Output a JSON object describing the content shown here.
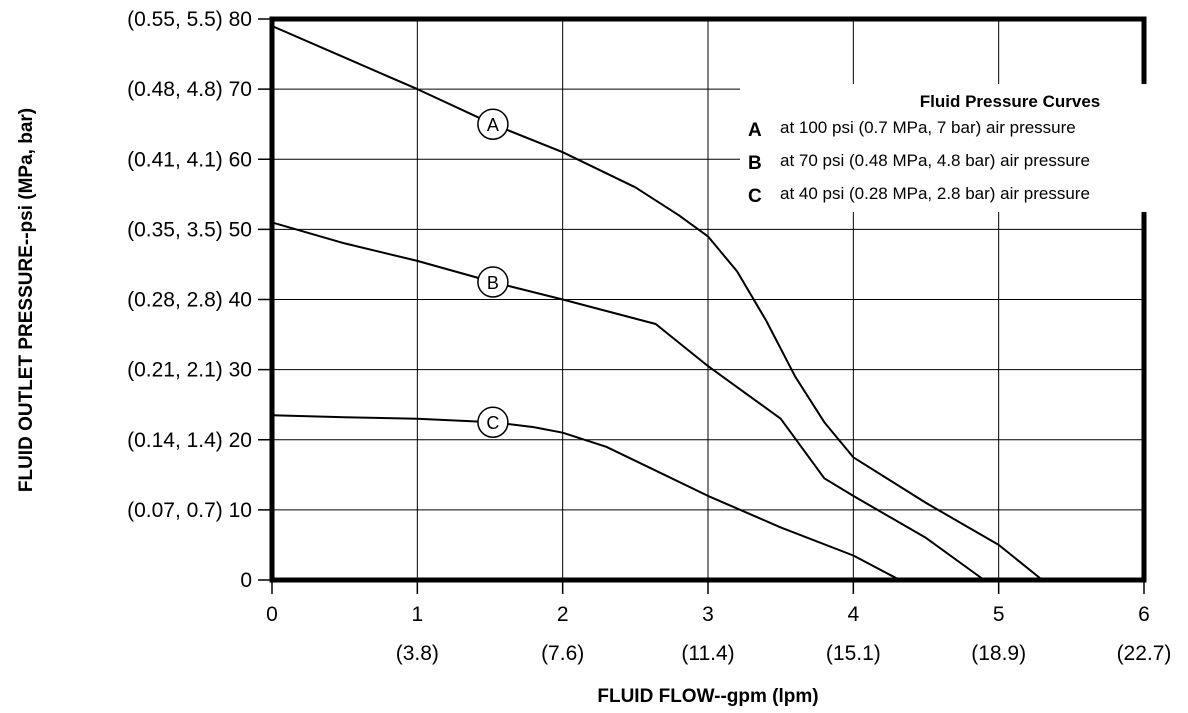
{
  "chart_data": {
    "type": "line",
    "title": "",
    "xlabel": "FLUID FLOW--gpm (lpm)",
    "ylabel": "FLUID OUTLET PRESSURE--psi (MPa, bar)",
    "xlim": [
      0,
      6
    ],
    "ylim": [
      0,
      80
    ],
    "grid": true,
    "x_ticks": [
      {
        "value": 0,
        "label": "0",
        "sublabel": ""
      },
      {
        "value": 1,
        "label": "1",
        "sublabel": "(3.8)"
      },
      {
        "value": 2,
        "label": "2",
        "sublabel": "(7.6)"
      },
      {
        "value": 3,
        "label": "3",
        "sublabel": "(11.4)"
      },
      {
        "value": 4,
        "label": "4",
        "sublabel": "(15.1)"
      },
      {
        "value": 5,
        "label": "5",
        "sublabel": "(18.9)"
      },
      {
        "value": 6,
        "label": "6",
        "sublabel": "(22.7)"
      }
    ],
    "y_ticks": [
      {
        "value": 0,
        "label": "0"
      },
      {
        "value": 10,
        "label": "(0.07, 0.7) 10"
      },
      {
        "value": 20,
        "label": "(0.14, 1.4) 20"
      },
      {
        "value": 30,
        "label": "(0.21, 2.1) 30"
      },
      {
        "value": 40,
        "label": "(0.28, 2.8) 40"
      },
      {
        "value": 50,
        "label": "(0.35, 3.5) 50"
      },
      {
        "value": 60,
        "label": "(0.41, 4.1) 60"
      },
      {
        "value": 70,
        "label": "(0.48, 4.8) 70"
      },
      {
        "value": 80,
        "label": "(0.55, 5.5) 80"
      }
    ],
    "legend": {
      "position": "top-right",
      "title": "Fluid Pressure Curves",
      "entries": [
        {
          "key": "A",
          "text": "at 100 psi (0.7 MPa, 7 bar) air pressure"
        },
        {
          "key": "B",
          "text": "at 70 psi (0.48 MPa, 4.8 bar) air pressure"
        },
        {
          "key": "C",
          "text": "at 40 psi (0.28 MPa, 2.8 bar) air pressure"
        }
      ]
    },
    "series": [
      {
        "name": "A",
        "label_at": [
          1.52,
          65
        ],
        "points": [
          [
            0,
            79
          ],
          [
            0.5,
            74.5
          ],
          [
            1.0,
            70
          ],
          [
            1.52,
            65
          ],
          [
            2.0,
            61
          ],
          [
            2.5,
            56
          ],
          [
            2.8,
            52
          ],
          [
            3.0,
            49
          ],
          [
            3.2,
            44
          ],
          [
            3.4,
            37
          ],
          [
            3.6,
            29
          ],
          [
            3.8,
            22.5
          ],
          [
            4.0,
            17.5
          ],
          [
            4.5,
            11
          ],
          [
            5.0,
            5
          ],
          [
            5.3,
            0
          ]
        ]
      },
      {
        "name": "B",
        "label_at": [
          1.52,
          42.5
        ],
        "points": [
          [
            0,
            51
          ],
          [
            0.5,
            48
          ],
          [
            1.0,
            45.5
          ],
          [
            1.52,
            42.5
          ],
          [
            2.0,
            40
          ],
          [
            2.64,
            36.5
          ],
          [
            3.0,
            30.5
          ],
          [
            3.5,
            23
          ],
          [
            3.8,
            14.5
          ],
          [
            4.0,
            12
          ],
          [
            4.5,
            6
          ],
          [
            4.9,
            0
          ]
        ]
      },
      {
        "name": "C",
        "label_at": [
          1.52,
          22.5
        ],
        "points": [
          [
            0,
            23.5
          ],
          [
            0.5,
            23.2
          ],
          [
            1.0,
            23
          ],
          [
            1.52,
            22.5
          ],
          [
            1.8,
            21.8
          ],
          [
            2.0,
            21
          ],
          [
            2.3,
            19
          ],
          [
            2.6,
            16
          ],
          [
            3.0,
            12
          ],
          [
            3.5,
            7.5
          ],
          [
            4.0,
            3.5
          ],
          [
            4.32,
            0
          ]
        ]
      }
    ]
  }
}
